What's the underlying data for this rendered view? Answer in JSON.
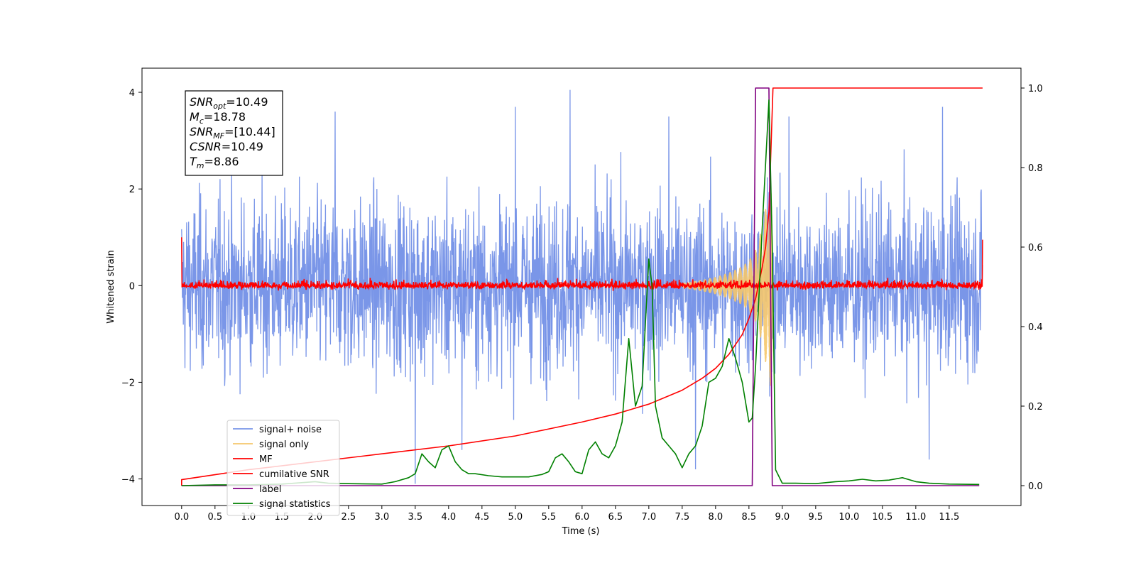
{
  "chart_data": {
    "type": "line",
    "xlabel": "Time (s)",
    "ylabel": "Whitened strain",
    "xlim": [
      -0.5937,
      12.576
    ],
    "ylim": [
      -4.55,
      4.5
    ],
    "ylim_right": [
      -0.05,
      1.05
    ],
    "x_ticks": [
      0.0,
      0.5,
      1.0,
      1.5,
      2.0,
      2.5,
      3.0,
      3.5,
      4.0,
      4.5,
      5.0,
      5.5,
      6.0,
      6.5,
      7.0,
      7.5,
      8.0,
      8.5,
      9.0,
      9.5,
      10.0,
      10.5,
      11.0,
      11.5
    ],
    "x_tick_labels": [
      "0.0",
      "0.5",
      "1.0",
      "1.5",
      "2.0",
      "2.5",
      "3.0",
      "3.5",
      "4.0",
      "4.5",
      "5.0",
      "5.5",
      "6.0",
      "6.5",
      "7.0",
      "7.5",
      "8.0",
      "8.5",
      "9.0",
      "9.5",
      "10.0",
      "10.5",
      "11.0",
      "11.5"
    ],
    "y_ticks": [
      -4,
      -2,
      0,
      2,
      4
    ],
    "y_tick_labels": [
      "−4",
      "−2",
      "0",
      "2",
      "4"
    ],
    "y_right_ticks": [
      0.0,
      0.2,
      0.4,
      0.6,
      0.8,
      1.0
    ],
    "y_right_tick_labels": [
      "0.0",
      "0.2",
      "0.4",
      "0.6",
      "0.8",
      "1.0"
    ],
    "annotation_lines": [
      {
        "name": "SNR",
        "sub": "opt",
        "value": "=10.49"
      },
      {
        "name": "M",
        "sub": "c",
        "value": "=18.78"
      },
      {
        "name": "SNR",
        "sub": "MF",
        "value": "=[10.44]"
      },
      {
        "name": "CSNR",
        "sub": "",
        "value": "=10.49"
      },
      {
        "name": "T",
        "sub": "m",
        "value": "=8.86"
      }
    ],
    "legend_position": "lower left",
    "series": [
      {
        "name": "signal+ noise",
        "color": "#7a96e8",
        "axis": "left",
        "style": "noise",
        "x_range": [
          0.0,
          12.0
        ],
        "amplitude_typical": 2.0,
        "amplitude_peak": [
          3.6,
          4.1
        ],
        "peaks": [
          {
            "x": 5.82,
            "y": 4.05
          },
          {
            "x": 5.0,
            "y": 3.7
          },
          {
            "x": 2.3,
            "y": 3.6
          },
          {
            "x": 9.1,
            "y": 3.5
          },
          {
            "x": 7.3,
            "y": 3.5
          },
          {
            "x": 11.4,
            "y": 3.7
          },
          {
            "x": 3.5,
            "y": -4.1
          },
          {
            "x": 7.7,
            "y": -3.8
          },
          {
            "x": 11.2,
            "y": -3.6
          },
          {
            "x": 4.2,
            "y": -3.4
          }
        ]
      },
      {
        "name": "signal only",
        "color": "#f5c76b",
        "axis": "left",
        "style": "chirp",
        "x": [
          7.5,
          7.8,
          8.0,
          8.2,
          8.4,
          8.5,
          8.6,
          8.7,
          8.8,
          8.86
        ],
        "envelope": [
          0.05,
          0.12,
          0.18,
          0.27,
          0.4,
          0.52,
          0.75,
          1.2,
          2.0,
          2.2
        ]
      },
      {
        "name": "MF",
        "color": "#ff0000",
        "axis": "left",
        "style": "noise",
        "x_range": [
          0.0,
          12.0
        ],
        "amplitude_typical": 0.15,
        "edges": [
          {
            "x": 0.0,
            "y": 1.0
          },
          {
            "x": 12.0,
            "y": 0.95
          }
        ]
      },
      {
        "name": "cumilative SNR",
        "color": "#ff0000",
        "axis": "right",
        "x": [
          0.0,
          0.0,
          1.0,
          2.0,
          3.0,
          4.0,
          5.0,
          6.0,
          6.5,
          7.0,
          7.5,
          7.8,
          8.0,
          8.2,
          8.4,
          8.5,
          8.6,
          8.7,
          8.75,
          8.8,
          8.86,
          9.0,
          10.0,
          11.0,
          12.0
        ],
        "y": [
          0.0,
          0.015,
          0.04,
          0.06,
          0.08,
          0.1,
          0.125,
          0.16,
          0.18,
          0.205,
          0.24,
          0.27,
          0.295,
          0.33,
          0.38,
          0.42,
          0.47,
          0.55,
          0.6,
          0.69,
          1.0,
          1.0,
          1.0,
          1.0,
          1.0
        ]
      },
      {
        "name": "label",
        "color": "#800080",
        "axis": "right",
        "x": [
          0.0,
          8.55,
          8.6,
          8.8,
          8.85,
          11.95
        ],
        "y": [
          0.0,
          0.0,
          1.0,
          1.0,
          0.0,
          0.0
        ]
      },
      {
        "name": "signal statistics",
        "color": "#008000",
        "axis": "right",
        "x": [
          0.0,
          0.5,
          1.0,
          1.5,
          2.0,
          2.2,
          2.5,
          3.0,
          3.2,
          3.4,
          3.5,
          3.6,
          3.7,
          3.8,
          3.9,
          4.0,
          4.1,
          4.2,
          4.3,
          4.4,
          4.6,
          4.8,
          5.0,
          5.2,
          5.4,
          5.5,
          5.6,
          5.7,
          5.8,
          5.9,
          6.0,
          6.1,
          6.2,
          6.3,
          6.4,
          6.5,
          6.6,
          6.7,
          6.8,
          6.9,
          7.0,
          7.05,
          7.1,
          7.2,
          7.3,
          7.4,
          7.5,
          7.6,
          7.7,
          7.8,
          7.9,
          8.0,
          8.1,
          8.2,
          8.3,
          8.4,
          8.5,
          8.55,
          8.6,
          8.7,
          8.8,
          8.85,
          8.9,
          9.0,
          9.2,
          9.5,
          9.8,
          10.0,
          10.2,
          10.4,
          10.6,
          10.8,
          11.0,
          11.2,
          11.5,
          11.95
        ],
        "y": [
          0.0,
          0.002,
          0.002,
          0.004,
          0.01,
          0.006,
          0.005,
          0.004,
          0.01,
          0.02,
          0.03,
          0.08,
          0.06,
          0.045,
          0.09,
          0.1,
          0.06,
          0.04,
          0.03,
          0.03,
          0.025,
          0.022,
          0.022,
          0.022,
          0.028,
          0.035,
          0.07,
          0.08,
          0.06,
          0.035,
          0.03,
          0.09,
          0.11,
          0.08,
          0.07,
          0.1,
          0.16,
          0.37,
          0.2,
          0.25,
          0.57,
          0.5,
          0.2,
          0.12,
          0.1,
          0.08,
          0.045,
          0.08,
          0.1,
          0.15,
          0.26,
          0.27,
          0.3,
          0.37,
          0.32,
          0.26,
          0.16,
          0.17,
          0.3,
          0.65,
          0.97,
          0.6,
          0.04,
          0.006,
          0.006,
          0.005,
          0.01,
          0.012,
          0.016,
          0.012,
          0.014,
          0.02,
          0.01,
          0.006,
          0.004,
          0.003
        ]
      }
    ]
  }
}
